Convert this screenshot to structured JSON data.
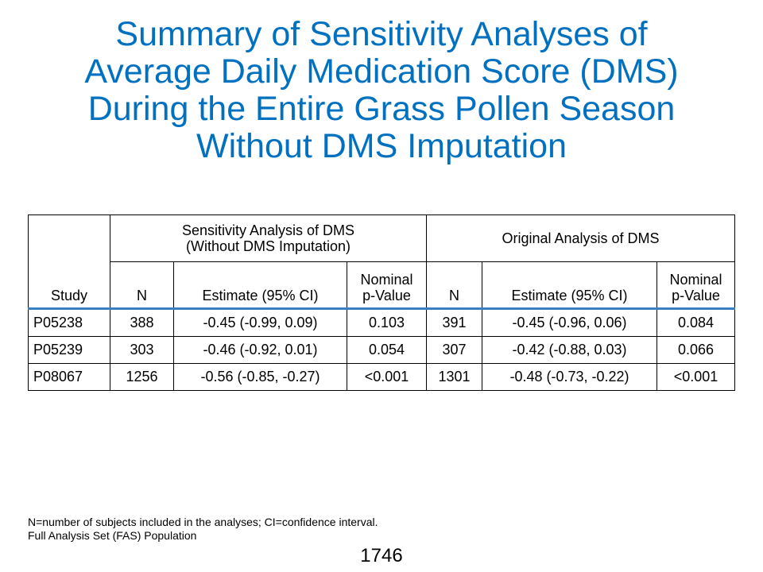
{
  "title_lines": [
    "Summary of Sensitivity Analyses of",
    "Average Daily Medication Score (DMS)",
    "During the Entire Grass Pollen Season",
    "Without DMS Imputation"
  ],
  "table": {
    "group_headers": {
      "sensitivity_line1": "Sensitivity Analysis of DMS",
      "sensitivity_line2": "(Without DMS Imputation)",
      "original": "Original Analysis of DMS"
    },
    "columns": {
      "study": "Study",
      "n": "N",
      "estimate": "Estimate (95% CI)",
      "pvalue_line1": "Nominal",
      "pvalue_line2": "p-Value"
    },
    "rows": [
      {
        "study": "P05238",
        "sens_n": "388",
        "sens_est": "-0.45 (-0.99, 0.09)",
        "sens_p": "0.103",
        "orig_n": "391",
        "orig_est": "-0.45 (-0.96, 0.06)",
        "orig_p": "0.084"
      },
      {
        "study": "P05239",
        "sens_n": "303",
        "sens_est": "-0.46 (-0.92, 0.01)",
        "sens_p": "0.054",
        "orig_n": "307",
        "orig_est": "-0.42 (-0.88, 0.03)",
        "orig_p": "0.066"
      },
      {
        "study": "P08067",
        "sens_n": "1256",
        "sens_est": "-0.56 (-0.85, -0.27)",
        "sens_p": "<0.001",
        "orig_n": "1301",
        "orig_est": "-0.48 (-0.73, -0.22)",
        "orig_p": "<0.001"
      }
    ]
  },
  "footnotes": [
    "N=number of subjects included in the analyses; CI=confidence interval.",
    "Full Analysis Set (FAS) Population"
  ],
  "page_number": "1746",
  "colors": {
    "title": "#0070C0",
    "header_rule": "#3A7FC5"
  }
}
